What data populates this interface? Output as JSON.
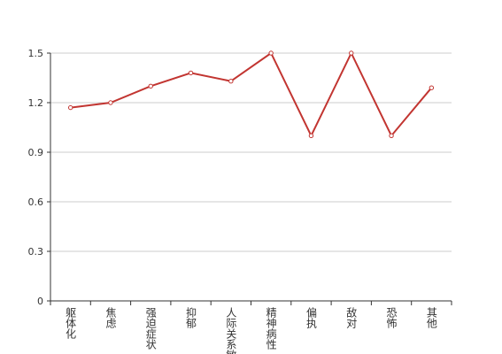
{
  "chart_data": {
    "type": "line",
    "categories": [
      "躯体化",
      "焦虑",
      "强迫症状",
      "抑郁",
      "人际关系敏感",
      "精神病性",
      "偏执",
      "敌对",
      "恐怖",
      "其他"
    ],
    "values": [
      1.17,
      1.2,
      1.3,
      1.38,
      1.33,
      1.5,
      1.0,
      1.5,
      1.0,
      1.29
    ],
    "color": "#c23531",
    "ylim": [
      0,
      1.5
    ],
    "yticks": [
      0,
      0.3,
      0.6,
      0.9,
      1.2,
      1.5
    ],
    "grid": true
  }
}
